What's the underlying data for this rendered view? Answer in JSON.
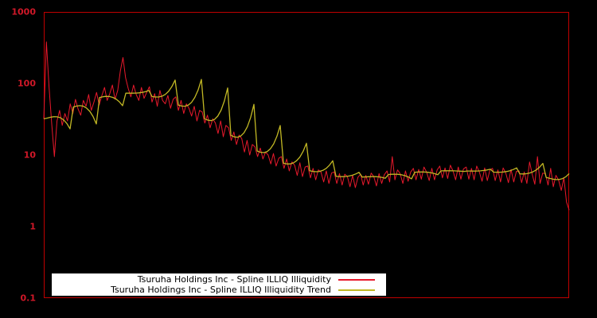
{
  "chart_data": {
    "type": "line",
    "title": "",
    "xlabel": "",
    "ylabel": "",
    "y_scale": "log",
    "ylim": [
      0.1,
      1000
    ],
    "x_range": [
      0,
      1
    ],
    "grid": false,
    "legend_position": "bottom-left-inside",
    "y_ticks": [
      {
        "value": 1000,
        "label": "1000"
      },
      {
        "value": 100,
        "label": "100"
      },
      {
        "value": 10,
        "label": "10"
      },
      {
        "value": 1,
        "label": "1"
      },
      {
        "value": 0.1,
        "label": "0.1"
      }
    ],
    "series": [
      {
        "name": "Tsuruha Holdings Inc - Spline ILLIQ Illiquidity",
        "color": "#e8192c",
        "style": "noisy",
        "values": [
          32,
          380,
          90,
          28,
          9.5,
          30,
          42,
          26,
          38,
          30,
          52,
          38,
          60,
          44,
          36,
          58,
          48,
          70,
          42,
          55,
          75,
          50,
          68,
          88,
          58,
          72,
          95,
          60,
          80,
          150,
          230,
          120,
          85,
          65,
          95,
          70,
          58,
          88,
          62,
          75,
          90,
          55,
          72,
          48,
          80,
          58,
          52,
          68,
          45,
          60,
          65,
          42,
          58,
          38,
          52,
          45,
          35,
          48,
          30,
          42,
          40,
          28,
          36,
          24,
          32,
          28,
          20,
          30,
          18,
          26,
          24,
          16,
          21,
          14,
          19,
          17,
          11,
          16,
          10,
          14,
          13,
          9.5,
          12.5,
          8.8,
          11,
          10,
          7.5,
          10.5,
          7,
          9,
          9.5,
          6.5,
          8.8,
          6,
          8,
          7.2,
          5.2,
          7.8,
          5,
          6.8,
          7,
          4.8,
          6.5,
          4.5,
          6.2,
          5.8,
          4.2,
          6,
          4,
          5.6,
          5.8,
          4,
          5.5,
          3.8,
          5.4,
          5,
          3.6,
          5.2,
          3.5,
          4.9,
          5.4,
          3.8,
          5.2,
          3.9,
          5.6,
          5,
          3.7,
          5.5,
          4,
          5.3,
          6,
          4.2,
          9.5,
          4.5,
          6.2,
          5.5,
          4,
          6,
          4.3,
          5.8,
          6.5,
          4.5,
          6.3,
          4.6,
          6.8,
          5.8,
          4.4,
          6.5,
          4.5,
          6.2,
          7,
          4.8,
          6.6,
          4.7,
          7.2,
          6,
          4.5,
          6.8,
          4.6,
          6.4,
          6.8,
          4.6,
          6.5,
          4.5,
          7,
          5.8,
          4.3,
          6.6,
          4.4,
          6.2,
          6.5,
          4.4,
          6.2,
          4.2,
          6.6,
          5.6,
          4.1,
          6.3,
          4.2,
          5.9,
          6,
          4.1,
          5.8,
          4,
          8,
          5.4,
          3.9,
          9.5,
          4,
          5.6,
          5.5,
          3.8,
          6.5,
          3.6,
          5.2,
          4.5,
          3.2,
          4.8,
          2.2,
          1.7
        ]
      },
      {
        "name": "Tsuruha Holdings Inc - Spline ILLIQ Illiquidity Trend",
        "color": "#c2b824",
        "style": "smooth",
        "x": [
          0,
          0.05,
          0.1,
          0.15,
          0.2,
          0.25,
          0.3,
          0.35,
          0.4,
          0.45,
          0.5,
          0.55,
          0.6,
          0.65,
          0.7,
          0.75,
          0.8,
          0.85,
          0.9,
          0.95,
          1.0
        ],
        "values": [
          32,
          45,
          62,
          73,
          67,
          52,
          34,
          20,
          12,
          8,
          6.2,
          5.1,
          4.9,
          5.3,
          5.7,
          6.0,
          6.0,
          5.8,
          5.5,
          5.0,
          3.8
        ]
      }
    ]
  },
  "colors": {
    "background": "#000000",
    "frame": "#c00000",
    "tick_label": "#d01828",
    "legend_background": "#ffffff",
    "legend_text": "#000000"
  }
}
